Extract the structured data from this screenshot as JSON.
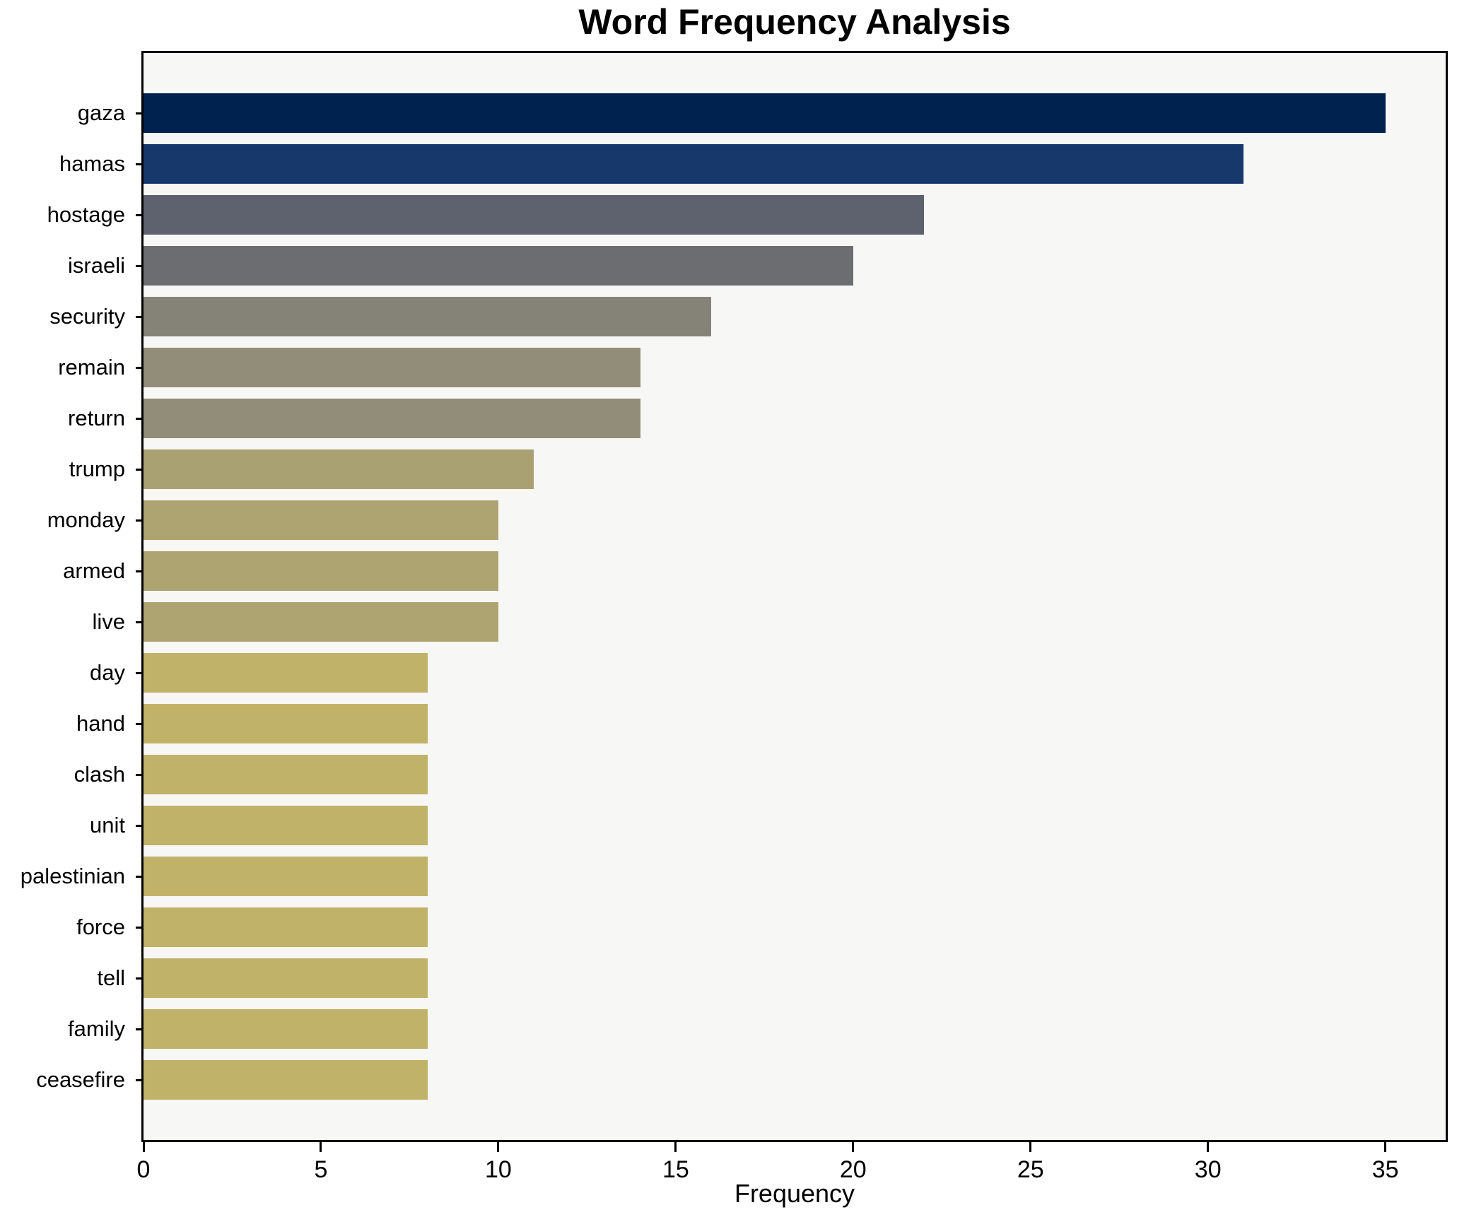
{
  "title": "Word Frequency Analysis",
  "chart_data": {
    "type": "bar",
    "orientation": "horizontal",
    "title": "Word Frequency Analysis",
    "xlabel": "Frequency",
    "ylabel": "",
    "categories": [
      "gaza",
      "hamas",
      "hostage",
      "israeli",
      "security",
      "remain",
      "return",
      "trump",
      "monday",
      "armed",
      "live",
      "day",
      "hand",
      "clash",
      "unit",
      "palestinian",
      "force",
      "tell",
      "family",
      "ceasefire"
    ],
    "values": [
      35,
      31,
      22,
      20,
      16,
      14,
      14,
      11,
      10,
      10,
      10,
      8,
      8,
      8,
      8,
      8,
      8,
      8,
      8,
      8
    ],
    "bar_colors": [
      "#00224e",
      "#17386b",
      "#5d626e",
      "#6c6d70",
      "#858378",
      "#928d78",
      "#928d78",
      "#aaa173",
      "#ada471",
      "#ada471",
      "#ada471",
      "#c0b269",
      "#c0b269",
      "#c0b269",
      "#c0b269",
      "#c0b269",
      "#c0b269",
      "#c0b269",
      "#c0b269",
      "#c0b269"
    ],
    "xticks": [
      0,
      5,
      10,
      15,
      20,
      25,
      30,
      35
    ],
    "xlim": [
      0,
      36.7
    ],
    "grid": false,
    "legend": null,
    "plot_background": "#f7f7f5",
    "figure_background": "#ffffff",
    "spine_color": "#000000"
  }
}
